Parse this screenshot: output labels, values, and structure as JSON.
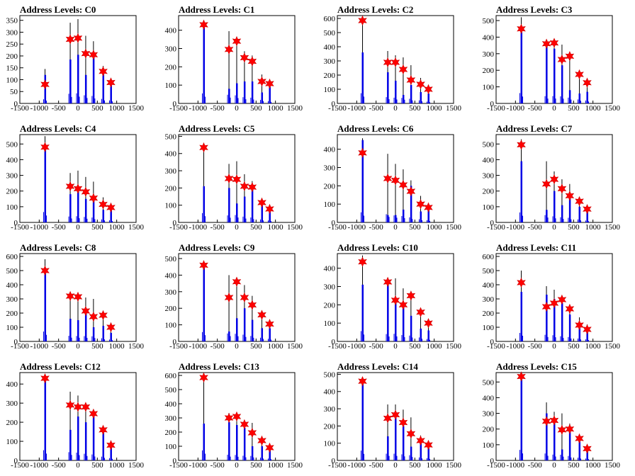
{
  "colors": {
    "histogram": "#000000",
    "fill": "#0000e6",
    "marker": "#ff0000",
    "axis": "#000000"
  },
  "chart_data": [
    {
      "type": "bar",
      "title": "Address Levels: C0",
      "xlim": [
        -1500,
        1500
      ],
      "ylim": [
        0,
        370
      ],
      "yticks": [
        0,
        50,
        100,
        150,
        200,
        250,
        300,
        350
      ],
      "xticks": [
        -1500,
        -1000,
        -500,
        0,
        500,
        1000,
        1500
      ],
      "peaks": [
        -850,
        -200,
        0,
        200,
        400,
        650,
        850
      ],
      "peak_heights": [
        145,
        340,
        355,
        285,
        262,
        158,
        105
      ],
      "fill_heights": [
        120,
        185,
        205,
        120,
        200,
        140,
        90
      ],
      "markers": [
        80,
        270,
        275,
        210,
        205,
        135,
        88
      ]
    },
    {
      "type": "bar",
      "title": "Address Levels: C1",
      "xlim": [
        -1500,
        1500
      ],
      "ylim": [
        0,
        480
      ],
      "yticks": [
        0,
        100,
        200,
        300,
        400
      ],
      "xticks": [
        -1500,
        -1000,
        -500,
        0,
        500,
        1000,
        1500
      ],
      "peaks": [
        -850,
        -200,
        0,
        200,
        400,
        650,
        850
      ],
      "peak_heights": [
        455,
        395,
        365,
        285,
        262,
        158,
        105
      ],
      "fill_heights": [
        440,
        80,
        110,
        120,
        120,
        60,
        90
      ],
      "markers": [
        430,
        295,
        340,
        250,
        230,
        120,
        108
      ]
    },
    {
      "type": "bar",
      "title": "Address Levels: C2",
      "xlim": [
        -1500,
        1500
      ],
      "ylim": [
        0,
        620
      ],
      "yticks": [
        0,
        100,
        200,
        300,
        400,
        500,
        600
      ],
      "xticks": [
        -1500,
        -1000,
        -500,
        0,
        500,
        1000,
        1500
      ],
      "peaks": [
        -850,
        -200,
        0,
        200,
        400,
        650,
        850
      ],
      "peak_heights": [
        600,
        370,
        340,
        325,
        270,
        180,
        105
      ],
      "fill_heights": [
        360,
        220,
        160,
        60,
        130,
        80,
        70
      ],
      "markers": [
        585,
        290,
        290,
        240,
        165,
        135,
        100
      ]
    },
    {
      "type": "bar",
      "title": "Address Levels: C3",
      "xlim": [
        -1500,
        1500
      ],
      "ylim": [
        0,
        530
      ],
      "yticks": [
        0,
        100,
        200,
        300,
        400,
        500
      ],
      "xticks": [
        -1500,
        -1000,
        -500,
        0,
        500,
        1000,
        1500
      ],
      "peaks": [
        -850,
        -200,
        0,
        200,
        400,
        650,
        850
      ],
      "peak_heights": [
        520,
        365,
        370,
        355,
        290,
        200,
        145
      ],
      "fill_heights": [
        430,
        350,
        330,
        230,
        80,
        60,
        70
      ],
      "markers": [
        450,
        360,
        365,
        265,
        285,
        175,
        125
      ]
    },
    {
      "type": "bar",
      "title": "Address Levels: C4",
      "xlim": [
        -1500,
        1500
      ],
      "ylim": [
        0,
        560
      ],
      "yticks": [
        0,
        100,
        200,
        300,
        400,
        500
      ],
      "xticks": [
        -1500,
        -1000,
        -500,
        0,
        500,
        1000,
        1500
      ],
      "peaks": [
        -850,
        -200,
        0,
        200,
        400,
        650,
        850
      ],
      "peak_heights": [
        550,
        315,
        330,
        290,
        260,
        160,
        110
      ],
      "fill_heights": [
        480,
        180,
        210,
        150,
        140,
        80,
        80
      ],
      "markers": [
        480,
        230,
        215,
        195,
        155,
        115,
        95
      ]
    },
    {
      "type": "bar",
      "title": "Address Levels: C5",
      "xlim": [
        -1500,
        1500
      ],
      "ylim": [
        0,
        510
      ],
      "yticks": [
        0,
        100,
        200,
        300,
        400,
        500
      ],
      "xticks": [
        -1500,
        -1000,
        -500,
        0,
        500,
        1000,
        1500
      ],
      "peaks": [
        -850,
        -200,
        0,
        200,
        400,
        650,
        850
      ],
      "peak_heights": [
        450,
        340,
        355,
        280,
        240,
        140,
        95
      ],
      "fill_heights": [
        210,
        200,
        110,
        150,
        200,
        110,
        80
      ],
      "markers": [
        435,
        255,
        250,
        210,
        205,
        115,
        78
      ]
    },
    {
      "type": "bar",
      "title": "Address Levels: C6",
      "xlim": [
        -1500,
        1500
      ],
      "ylim": [
        0,
        480
      ],
      "yticks": [
        0,
        100,
        200,
        300,
        400
      ],
      "xticks": [
        -1500,
        -1000,
        -500,
        0,
        500,
        1000,
        1500
      ],
      "peaks": [
        -850,
        -200,
        0,
        200,
        400,
        650,
        850
      ],
      "peak_heights": [
        460,
        375,
        320,
        290,
        230,
        145,
        100
      ],
      "fill_heights": [
        450,
        40,
        40,
        70,
        200,
        60,
        70
      ],
      "markers": [
        380,
        240,
        230,
        205,
        170,
        100,
        82
      ]
    },
    {
      "type": "bar",
      "title": "Address Levels: C7",
      "xlim": [
        -1500,
        1500
      ],
      "ylim": [
        0,
        560
      ],
      "yticks": [
        0,
        100,
        200,
        300,
        400,
        500
      ],
      "xticks": [
        -1500,
        -1000,
        -500,
        0,
        500,
        1000,
        1500
      ],
      "peaks": [
        -850,
        -200,
        0,
        200,
        400,
        650,
        850
      ],
      "peak_heights": [
        530,
        390,
        325,
        275,
        245,
        160,
        100
      ],
      "fill_heights": [
        390,
        80,
        200,
        110,
        180,
        100,
        70
      ],
      "markers": [
        495,
        245,
        275,
        215,
        170,
        135,
        85
      ]
    },
    {
      "type": "bar",
      "title": "Address Levels: C8",
      "xlim": [
        -1500,
        1500
      ],
      "ylim": [
        0,
        620
      ],
      "yticks": [
        0,
        100,
        200,
        300,
        400,
        500,
        600
      ],
      "xticks": [
        -1500,
        -1000,
        -500,
        0,
        500,
        1000,
        1500
      ],
      "peaks": [
        -850,
        -200,
        0,
        200,
        400,
        650,
        850
      ],
      "peak_heights": [
        580,
        330,
        320,
        310,
        300,
        185,
        110
      ],
      "fill_heights": [
        480,
        160,
        150,
        220,
        100,
        110,
        60
      ],
      "markers": [
        500,
        320,
        315,
        215,
        175,
        185,
        100
      ]
    },
    {
      "type": "bar",
      "title": "Address Levels: C9",
      "xlim": [
        -1500,
        1500
      ],
      "ylim": [
        0,
        530
      ],
      "yticks": [
        0,
        100,
        200,
        300,
        400,
        500
      ],
      "xticks": [
        -1500,
        -1000,
        -500,
        0,
        500,
        1000,
        1500
      ],
      "peaks": [
        -850,
        -200,
        0,
        200,
        400,
        650,
        850
      ],
      "peak_heights": [
        470,
        400,
        385,
        340,
        275,
        185,
        130
      ],
      "fill_heights": [
        460,
        60,
        140,
        200,
        130,
        80,
        80
      ],
      "markers": [
        460,
        265,
        360,
        265,
        220,
        160,
        105
      ]
    },
    {
      "type": "bar",
      "title": "Address Levels: C10",
      "xlim": [
        -1500,
        1500
      ],
      "ylim": [
        0,
        480
      ],
      "yticks": [
        0,
        100,
        200,
        300,
        400
      ],
      "xticks": [
        -1500,
        -1000,
        -500,
        0,
        500,
        1000,
        1500
      ],
      "peaks": [
        -850,
        -200,
        0,
        200,
        400,
        650,
        850
      ],
      "peak_heights": [
        470,
        335,
        345,
        290,
        265,
        180,
        110
      ],
      "fill_heights": [
        310,
        310,
        220,
        200,
        140,
        70,
        60
      ],
      "markers": [
        435,
        325,
        225,
        200,
        250,
        160,
        100
      ]
    },
    {
      "type": "bar",
      "title": "Address Levels: C11",
      "xlim": [
        -1500,
        1500
      ],
      "ylim": [
        0,
        620
      ],
      "yticks": [
        0,
        100,
        200,
        300,
        400,
        500,
        600
      ],
      "xticks": [
        -1500,
        -1000,
        -500,
        0,
        500,
        1000,
        1500
      ],
      "peaks": [
        -850,
        -200,
        0,
        200,
        400,
        650,
        850
      ],
      "peak_heights": [
        500,
        390,
        365,
        305,
        255,
        170,
        120
      ],
      "fill_heights": [
        350,
        330,
        300,
        270,
        190,
        130,
        90
      ],
      "markers": [
        415,
        245,
        270,
        295,
        230,
        115,
        85
      ]
    },
    {
      "type": "bar",
      "title": "Address Levels: C12",
      "xlim": [
        -1500,
        1500
      ],
      "ylim": [
        0,
        460
      ],
      "yticks": [
        0,
        100,
        200,
        300,
        400
      ],
      "xticks": [
        -1500,
        -1000,
        -500,
        0,
        500,
        1000,
        1500
      ],
      "peaks": [
        -850,
        -200,
        0,
        200,
        400,
        650,
        850
      ],
      "peak_heights": [
        445,
        360,
        340,
        290,
        260,
        165,
        100
      ],
      "fill_heights": [
        440,
        160,
        230,
        200,
        240,
        150,
        75
      ],
      "markers": [
        430,
        290,
        280,
        280,
        245,
        160,
        80
      ]
    },
    {
      "type": "bar",
      "title": "Address Levels: C13",
      "xlim": [
        -1500,
        1500
      ],
      "ylim": [
        0,
        620
      ],
      "yticks": [
        0,
        100,
        200,
        300,
        400,
        500,
        600
      ],
      "xticks": [
        -1500,
        -1000,
        -500,
        0,
        500,
        1000,
        1500
      ],
      "peaks": [
        -850,
        -200,
        0,
        200,
        400,
        650,
        850
      ],
      "peak_heights": [
        590,
        335,
        320,
        275,
        265,
        160,
        110
      ],
      "fill_heights": [
        260,
        270,
        250,
        230,
        100,
        100,
        80
      ],
      "markers": [
        585,
        300,
        310,
        255,
        195,
        140,
        90
      ]
    },
    {
      "type": "bar",
      "title": "Address Levels: C14",
      "xlim": [
        -1500,
        1500
      ],
      "ylim": [
        0,
        510
      ],
      "yticks": [
        0,
        100,
        200,
        300,
        400,
        500
      ],
      "xticks": [
        -1500,
        -1000,
        -500,
        0,
        500,
        1000,
        1500
      ],
      "peaks": [
        -850,
        -200,
        0,
        200,
        400,
        650,
        850
      ],
      "peak_heights": [
        475,
        325,
        325,
        295,
        250,
        145,
        110
      ],
      "fill_heights": [
        470,
        140,
        250,
        200,
        80,
        100,
        70
      ],
      "markers": [
        460,
        245,
        265,
        220,
        155,
        115,
        90
      ]
    },
    {
      "type": "bar",
      "title": "Address Levels: C15",
      "xlim": [
        -1500,
        1500
      ],
      "ylim": [
        0,
        560
      ],
      "yticks": [
        0,
        100,
        200,
        300,
        400,
        500
      ],
      "xticks": [
        -1500,
        -1000,
        -500,
        0,
        500,
        1000,
        1500
      ],
      "peaks": [
        -850,
        -200,
        0,
        200,
        400,
        650,
        850
      ],
      "peak_heights": [
        560,
        370,
        310,
        300,
        235,
        145,
        100
      ],
      "fill_heights": [
        540,
        300,
        240,
        70,
        200,
        120,
        60
      ],
      "markers": [
        535,
        250,
        255,
        195,
        200,
        140,
        75
      ]
    }
  ]
}
